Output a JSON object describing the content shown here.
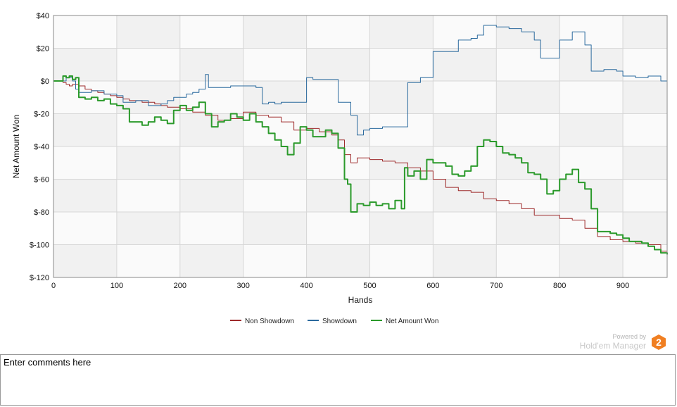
{
  "chart_data": {
    "type": "line",
    "xlabel": "Hands",
    "ylabel": "Net Amount Won",
    "xlim": [
      0,
      970
    ],
    "ylim": [
      -120,
      40
    ],
    "x_ticks": [
      0,
      100,
      200,
      300,
      400,
      500,
      600,
      700,
      800,
      900
    ],
    "x_tick_labels": [
      "0",
      "100",
      "200",
      "300",
      "400",
      "500",
      "600",
      "700",
      "800",
      "900"
    ],
    "y_ticks": [
      40,
      20,
      0,
      -20,
      -40,
      -60,
      -80,
      -100,
      -120
    ],
    "y_tick_labels": [
      "$40",
      "$20",
      "$0",
      "$-20",
      "$-40",
      "$-60",
      "$-80",
      "$-100",
      "$-120"
    ],
    "grid": true,
    "legend_position": "bottom-center",
    "series": [
      {
        "name": "Non Showdown",
        "color": "#9e2a2b",
        "stroke_width": 1,
        "x": [
          0,
          10,
          15,
          20,
          25,
          30,
          40,
          50,
          60,
          70,
          80,
          90,
          100,
          110,
          120,
          140,
          160,
          170,
          180,
          200,
          220,
          240,
          260,
          280,
          300,
          320,
          340,
          360,
          380,
          400,
          420,
          440,
          450,
          460,
          470,
          480,
          500,
          520,
          540,
          550,
          560,
          580,
          600,
          620,
          640,
          660,
          680,
          700,
          720,
          740,
          760,
          780,
          800,
          820,
          840,
          860,
          880,
          900,
          920,
          940,
          960,
          970
        ],
        "y": [
          0,
          0,
          -1,
          -2,
          -3,
          -2,
          -3,
          -5,
          -6,
          -7,
          -8,
          -9,
          -10,
          -11,
          -12,
          -13,
          -14,
          -15,
          -16,
          -17,
          -19,
          -21,
          -24,
          -23,
          -19,
          -21,
          -22,
          -25,
          -30,
          -29,
          -31,
          -33,
          -36,
          -45,
          -50,
          -47,
          -48,
          -49,
          -50,
          -50,
          -53,
          -55,
          -60,
          -65,
          -67,
          -68,
          -72,
          -73,
          -75,
          -78,
          -82,
          -82,
          -84,
          -85,
          -90,
          -95,
          -97,
          -98,
          -99,
          -100,
          -104,
          -105
        ]
      },
      {
        "name": "Showdown",
        "color": "#2b6a9e",
        "stroke_width": 1,
        "x": [
          0,
          10,
          20,
          30,
          35,
          40,
          60,
          80,
          100,
          110,
          130,
          150,
          170,
          180,
          190,
          200,
          210,
          220,
          230,
          240,
          245,
          260,
          280,
          300,
          320,
          330,
          340,
          350,
          360,
          380,
          400,
          410,
          430,
          450,
          450,
          470,
          480,
          490,
          500,
          510,
          520,
          530,
          550,
          560,
          580,
          600,
          620,
          640,
          660,
          670,
          680,
          690,
          700,
          720,
          740,
          760,
          770,
          780,
          800,
          810,
          820,
          840,
          850,
          870,
          890,
          900,
          920,
          940,
          960,
          970
        ],
        "y": [
          0,
          0,
          2,
          0,
          -5,
          -7,
          -6,
          -8,
          -9,
          -13,
          -12,
          -15,
          -14,
          -12,
          -10,
          -10,
          -8,
          -7,
          -5,
          4,
          -4,
          -4,
          -3,
          -3,
          -4,
          -14,
          -13,
          -14,
          -13,
          -13,
          2,
          1,
          1,
          1,
          -13,
          -21,
          -33,
          -30,
          -29,
          -29,
          -28,
          -28,
          -28,
          -1,
          2,
          18,
          18,
          25,
          26,
          28,
          34,
          34,
          33,
          32,
          30,
          25,
          14,
          14,
          25,
          25,
          30,
          22,
          6,
          7,
          6,
          3,
          2,
          3,
          0,
          0
        ]
      },
      {
        "name": "Net Amount Won",
        "color": "#2b9a2b",
        "stroke_width": 2,
        "x": [
          0,
          10,
          15,
          20,
          25,
          30,
          35,
          40,
          50,
          60,
          70,
          80,
          90,
          100,
          110,
          120,
          140,
          150,
          160,
          170,
          180,
          190,
          200,
          210,
          220,
          230,
          240,
          250,
          260,
          270,
          280,
          290,
          300,
          310,
          320,
          330,
          340,
          350,
          360,
          370,
          380,
          390,
          400,
          410,
          420,
          430,
          440,
          450,
          460,
          465,
          470,
          480,
          490,
          500,
          510,
          520,
          530,
          540,
          550,
          555,
          560,
          570,
          580,
          590,
          600,
          610,
          620,
          630,
          640,
          650,
          660,
          670,
          680,
          690,
          700,
          710,
          720,
          730,
          740,
          750,
          760,
          770,
          780,
          790,
          800,
          810,
          820,
          830,
          840,
          850,
          860,
          870,
          880,
          890,
          900,
          910,
          920,
          930,
          940,
          950,
          960,
          970
        ],
        "y": [
          0,
          0,
          3,
          2,
          3,
          1,
          2,
          -10,
          -11,
          -10,
          -12,
          -11,
          -14,
          -15,
          -17,
          -25,
          -27,
          -25,
          -22,
          -24,
          -26,
          -18,
          -15,
          -18,
          -16,
          -13,
          -20,
          -28,
          -25,
          -24,
          -20,
          -22,
          -24,
          -20,
          -25,
          -28,
          -32,
          -36,
          -40,
          -45,
          -38,
          -28,
          -30,
          -34,
          -34,
          -30,
          -32,
          -41,
          -60,
          -63,
          -80,
          -75,
          -76,
          -74,
          -76,
          -75,
          -78,
          -73,
          -78,
          -53,
          -58,
          -55,
          -60,
          -48,
          -50,
          -50,
          -52,
          -57,
          -58,
          -55,
          -52,
          -40,
          -36,
          -37,
          -40,
          -44,
          -45,
          -47,
          -50,
          -56,
          -57,
          -60,
          -69,
          -67,
          -60,
          -57,
          -54,
          -62,
          -66,
          -78,
          -92,
          -92,
          -93,
          -94,
          -96,
          -98,
          -98,
          -99,
          -101,
          -103,
          -105,
          -106
        ]
      }
    ]
  },
  "legend": {
    "items": [
      "Non Showdown",
      "Showdown",
      "Net Amount Won"
    ]
  },
  "branding": {
    "powered_by": "Powered by",
    "product": "Hold'em Manager",
    "logo_digit": "2",
    "logo_color": "#f07f22"
  },
  "comments": {
    "text": "Enter comments here"
  }
}
